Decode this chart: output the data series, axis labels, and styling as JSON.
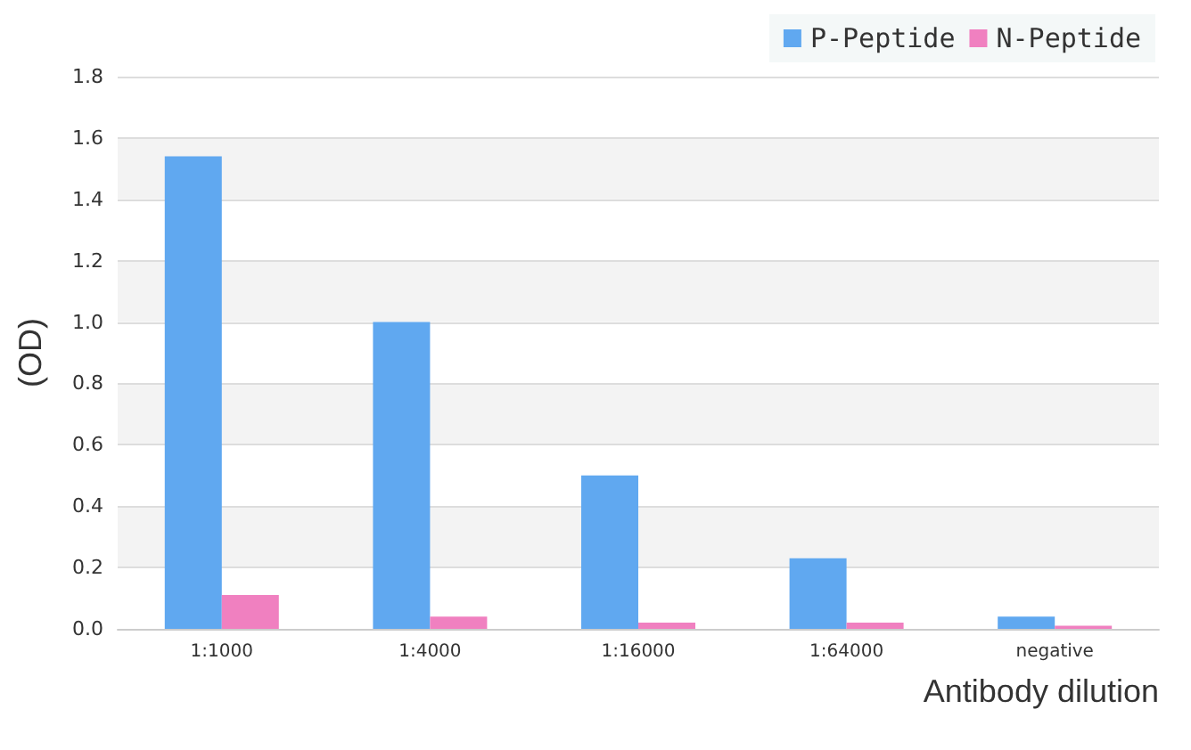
{
  "chart_data": {
    "type": "bar",
    "xlabel": "Antibody dilution",
    "ylabel": "(OD)",
    "categories": [
      "1:1000",
      "1:4000",
      "1:16000",
      "1:64000",
      "negative"
    ],
    "series": [
      {
        "name": "P-Peptide",
        "color": "#60a8f0",
        "values": [
          1.54,
          1.0,
          0.5,
          0.23,
          0.04
        ]
      },
      {
        "name": "N-Peptide",
        "color": "#f080c0",
        "values": [
          0.11,
          0.04,
          0.02,
          0.02,
          0.01
        ]
      }
    ],
    "ylim": [
      0,
      1.8
    ],
    "yticks": [
      {
        "value": 0,
        "label": "0.0"
      },
      0.2,
      0.4,
      0.6,
      0.8,
      {
        "value": 1,
        "label": "1.0"
      },
      1.2,
      1.4,
      1.6,
      1.8
    ],
    "grid": "y",
    "legend": "top right"
  }
}
